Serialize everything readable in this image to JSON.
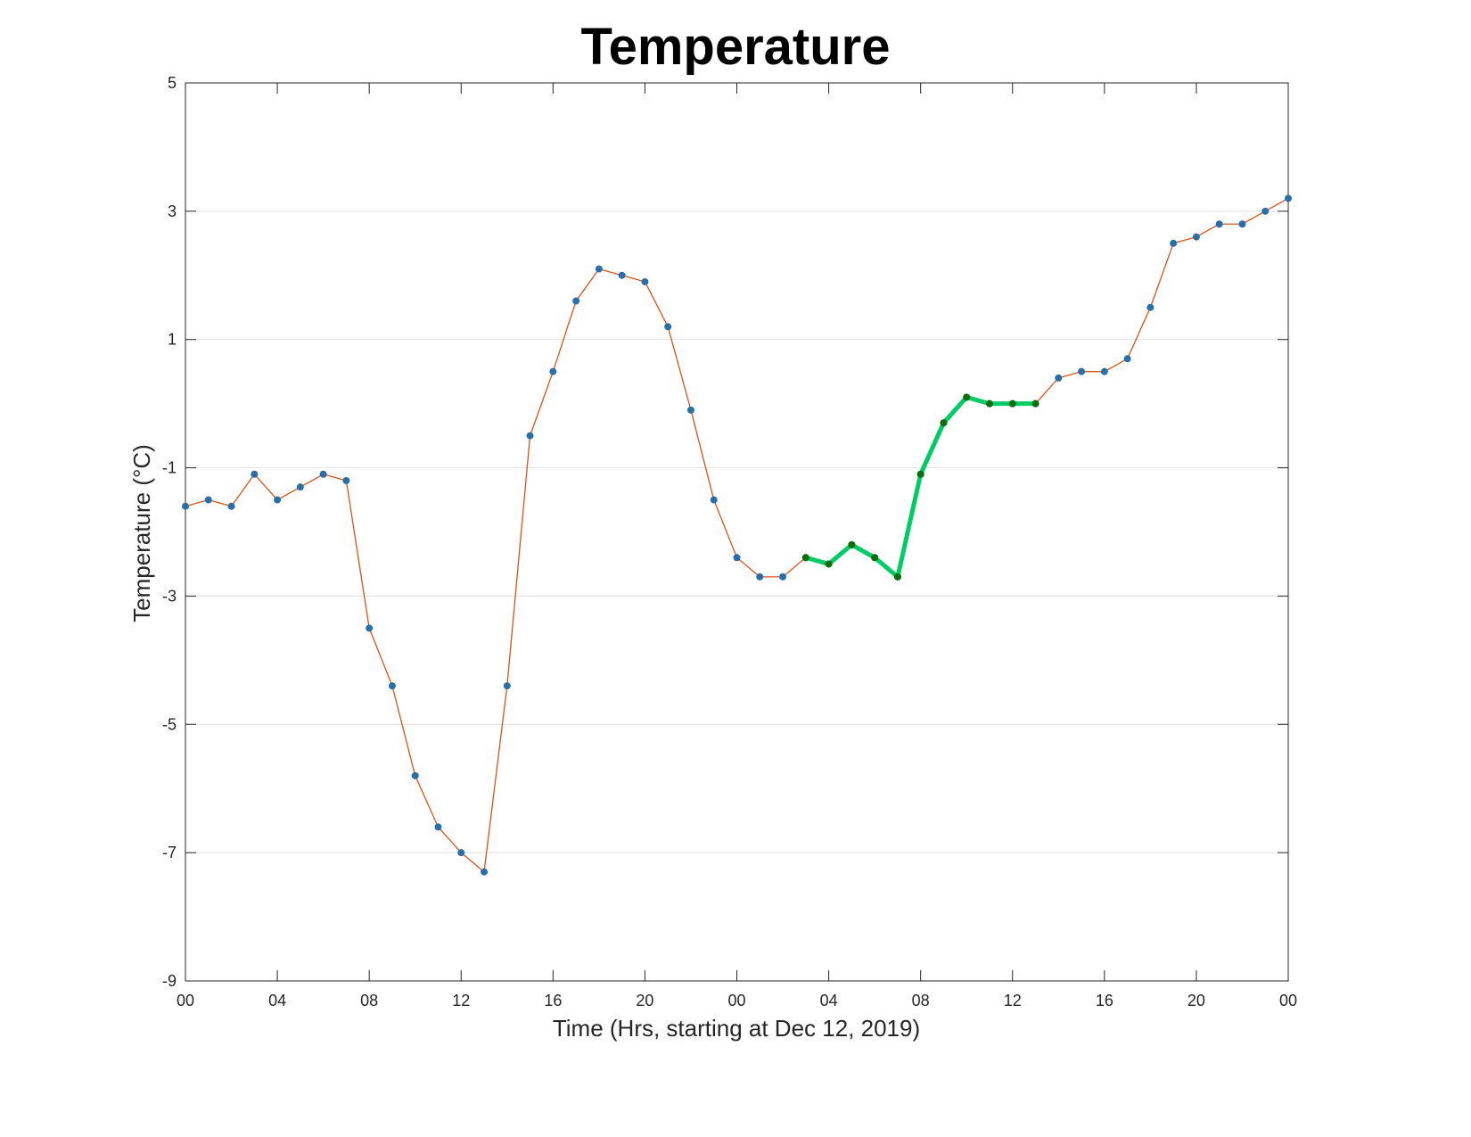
{
  "chart_data": {
    "type": "line",
    "title": "Temperature",
    "xlabel": "Time (Hrs, starting at Dec 12, 2019)",
    "ylabel": "Temperature (°C)",
    "xlim": [
      0,
      48
    ],
    "ylim": [
      -9,
      5
    ],
    "grid": "horizontal",
    "x_ticks": [
      {
        "value": 0,
        "label": "00"
      },
      {
        "value": 4,
        "label": "04"
      },
      {
        "value": 8,
        "label": "08"
      },
      {
        "value": 12,
        "label": "12"
      },
      {
        "value": 16,
        "label": "16"
      },
      {
        "value": 20,
        "label": "20"
      },
      {
        "value": 24,
        "label": "00"
      },
      {
        "value": 28,
        "label": "04"
      },
      {
        "value": 32,
        "label": "08"
      },
      {
        "value": 36,
        "label": "12"
      },
      {
        "value": 40,
        "label": "16"
      },
      {
        "value": 44,
        "label": "20"
      },
      {
        "value": 48,
        "label": "00"
      }
    ],
    "y_ticks": [
      {
        "value": 5,
        "label": "5"
      },
      {
        "value": 3,
        "label": "3"
      },
      {
        "value": 1,
        "label": "1"
      },
      {
        "value": -1,
        "label": "-1"
      },
      {
        "value": -3,
        "label": "-3"
      },
      {
        "value": -5,
        "label": "-5"
      },
      {
        "value": -7,
        "label": "-7"
      },
      {
        "value": -9,
        "label": "-9"
      }
    ],
    "series": [
      {
        "line_color": "#d95319",
        "marker_color": "#2a6fa8",
        "x": [
          0,
          1,
          2,
          3,
          4,
          5,
          6,
          7,
          8,
          9,
          10,
          11,
          12,
          13,
          14,
          15,
          16,
          17,
          18,
          19,
          20,
          21,
          22,
          23,
          24,
          25,
          26,
          27,
          28,
          29,
          30,
          31,
          32,
          33,
          34,
          35,
          36,
          37,
          38,
          39,
          40,
          41,
          42,
          43,
          44,
          45,
          46,
          47,
          48
        ],
        "y": [
          -1.6,
          -1.5,
          -1.6,
          -1.1,
          -1.5,
          -1.3,
          -1.1,
          -1.2,
          -3.5,
          -4.4,
          -5.8,
          -6.6,
          -7.0,
          -7.3,
          -4.4,
          -0.5,
          0.5,
          1.6,
          2.1,
          2.0,
          1.9,
          1.2,
          -0.1,
          -1.5,
          -2.4,
          -2.7,
          -2.7,
          -2.4,
          -2.5,
          -2.2,
          -2.4,
          -2.7,
          -1.1,
          -0.3,
          0.1,
          0.0,
          0.0,
          0.0,
          0.4,
          0.5,
          0.5,
          0.7,
          1.5,
          2.5,
          2.6,
          2.8,
          2.8,
          3.0,
          3.2
        ]
      },
      {
        "line_color": "#00cc66",
        "marker_color": "#0a6e0a",
        "x": [
          27,
          28,
          29,
          30,
          31,
          32,
          33,
          34,
          35,
          36,
          37
        ],
        "y": [
          -2.4,
          -2.5,
          -2.2,
          -2.4,
          -2.7,
          -1.1,
          -0.3,
          0.1,
          0.0,
          0.0,
          0.0
        ]
      }
    ]
  }
}
